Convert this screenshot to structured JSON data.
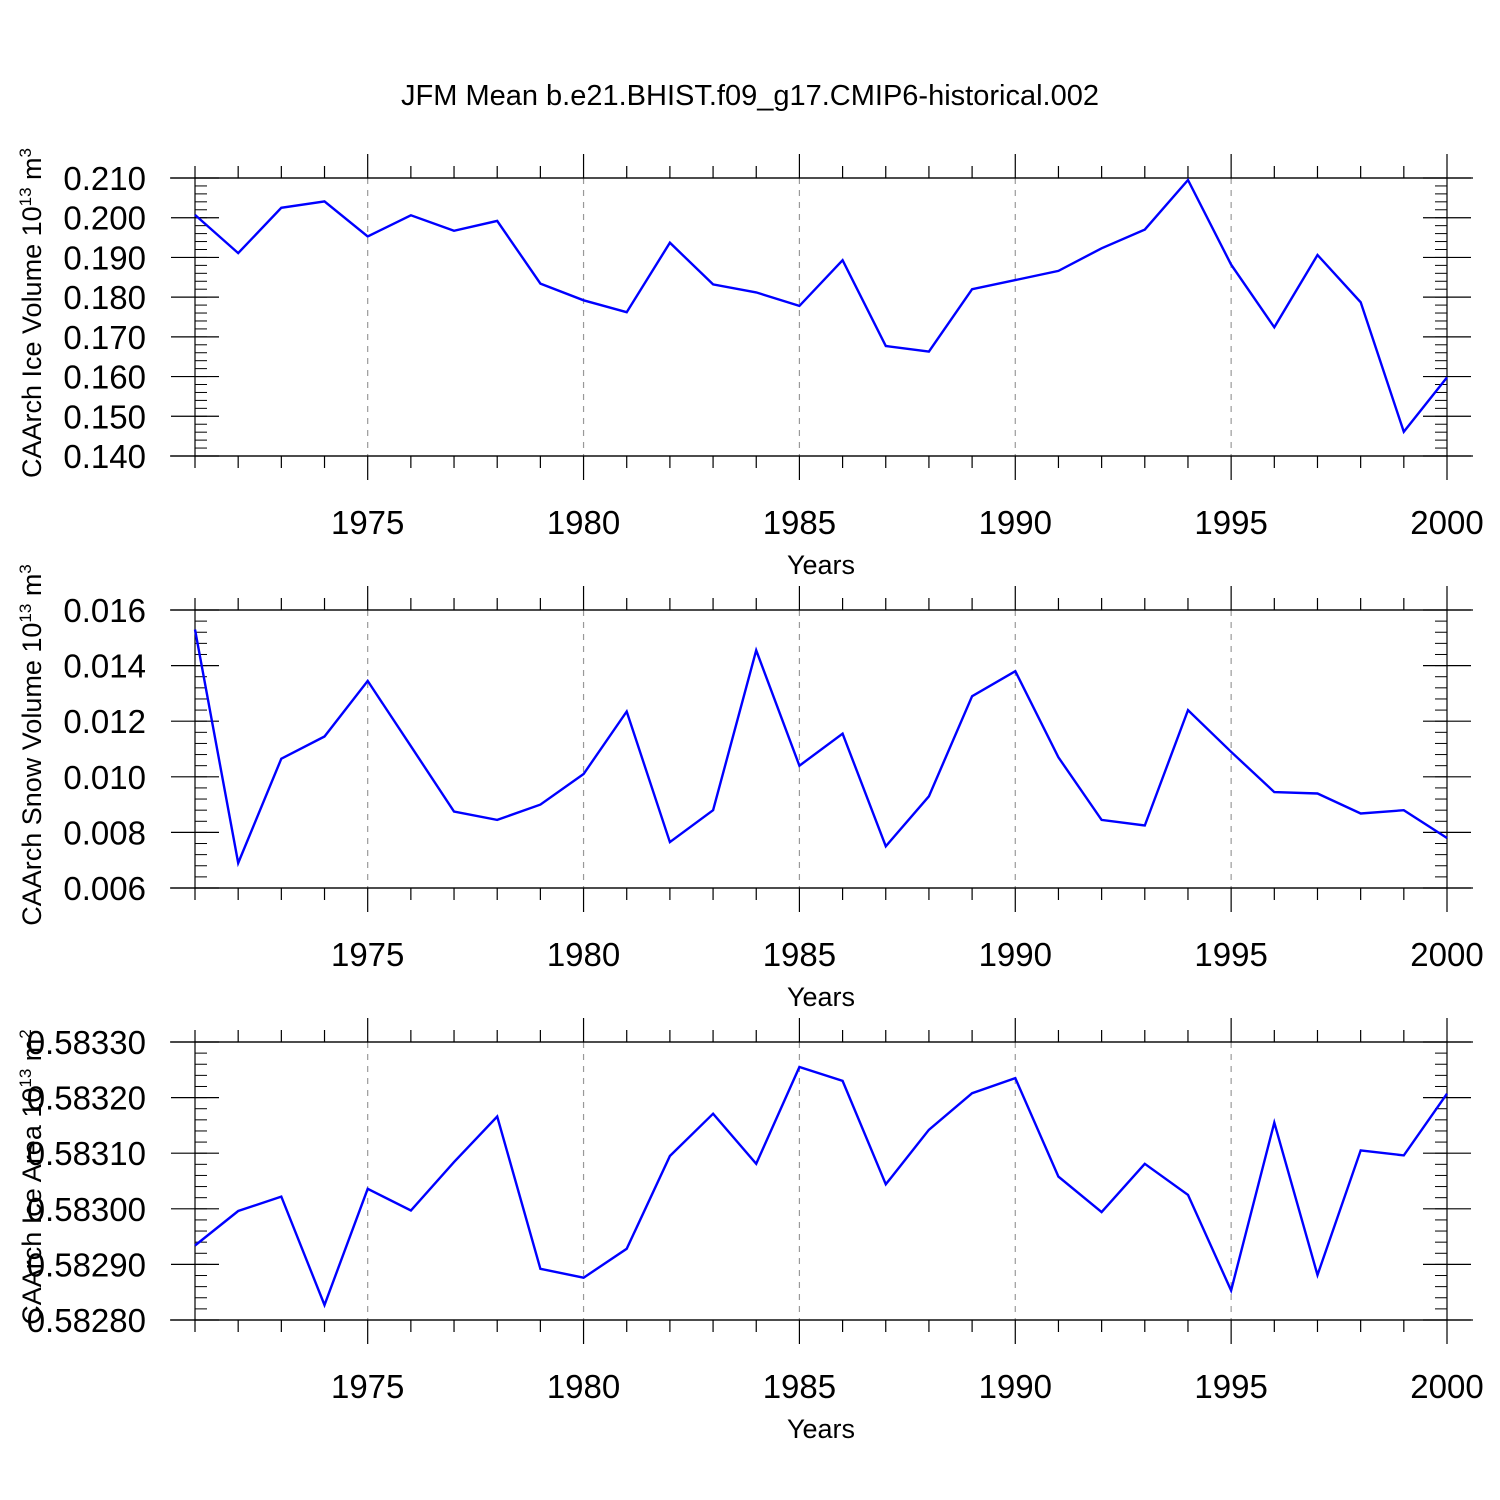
{
  "figure": {
    "title": "JFM Mean b.e21.BHIST.f09_g17.CMIP6-historical.002"
  },
  "chart_data": [
    {
      "type": "line",
      "ylabel": "CAArch Ice Volume 10",
      "ylabel_sup": "13",
      "ylabel_unit": "m",
      "ylabel_unit_sup": "3",
      "xlabel": "Years",
      "xlim": [
        1971,
        2000
      ],
      "ylim": [
        0.14,
        0.21
      ],
      "xticks": [
        1975,
        1980,
        1985,
        1990,
        1995,
        2000
      ],
      "yticks": [
        "0.140",
        "0.150",
        "0.160",
        "0.170",
        "0.180",
        "0.190",
        "0.200",
        "0.210"
      ],
      "grid": "vertical dashed at x ticks",
      "line_color": "#0000ff",
      "x": [
        1971,
        1972,
        1973,
        1974,
        1975,
        1976,
        1977,
        1978,
        1979,
        1980,
        1981,
        1982,
        1983,
        1984,
        1985,
        1986,
        1987,
        1988,
        1989,
        1990,
        1991,
        1992,
        1993,
        1994,
        1995,
        1996,
        1997,
        1998,
        1999,
        2000
      ],
      "values": [
        0.2007,
        0.1911,
        0.2025,
        0.2041,
        0.1953,
        0.2006,
        0.1967,
        0.1992,
        0.1834,
        0.1792,
        0.1762,
        0.1937,
        0.1832,
        0.1812,
        0.1778,
        0.1893,
        0.1677,
        0.1663,
        0.182,
        0.1843,
        0.1866,
        0.1923,
        0.197,
        0.2095,
        0.1882,
        0.1724,
        0.1906,
        0.1787,
        0.1461,
        0.1598
      ]
    },
    {
      "type": "line",
      "ylabel": "CAArch Snow Volume 10",
      "ylabel_sup": "13",
      "ylabel_unit": "m",
      "ylabel_unit_sup": "3",
      "xlabel": "Years",
      "xlim": [
        1971,
        2000
      ],
      "ylim": [
        0.006,
        0.016
      ],
      "xticks": [
        1975,
        1980,
        1985,
        1990,
        1995,
        2000
      ],
      "yticks": [
        "0.006",
        "0.008",
        "0.010",
        "0.012",
        "0.014",
        "0.016"
      ],
      "grid": "vertical dashed at x ticks",
      "line_color": "#0000ff",
      "x": [
        1971,
        1972,
        1973,
        1974,
        1975,
        1976,
        1977,
        1978,
        1979,
        1980,
        1981,
        1982,
        1983,
        1984,
        1985,
        1986,
        1987,
        1988,
        1989,
        1990,
        1991,
        1992,
        1993,
        1994,
        1995,
        1996,
        1997,
        1998,
        1999,
        2000
      ],
      "values": [
        0.0153,
        0.0069,
        0.01065,
        0.01145,
        0.01345,
        0.0111,
        0.00875,
        0.00845,
        0.009,
        0.0101,
        0.01235,
        0.00765,
        0.0088,
        0.01455,
        0.0104,
        0.01155,
        0.0075,
        0.0093,
        0.0129,
        0.0138,
        0.0107,
        0.00845,
        0.00825,
        0.0124,
        0.0109,
        0.00945,
        0.0094,
        0.00868,
        0.0088,
        0.0078
      ]
    },
    {
      "type": "line",
      "ylabel": "CAArch Ice Area 10",
      "ylabel_sup": "13",
      "ylabel_unit": "m",
      "ylabel_unit_sup": "2",
      "xlabel": "Years",
      "xlim": [
        1971,
        2000
      ],
      "ylim": [
        0.5828,
        0.5833
      ],
      "xticks": [
        1975,
        1980,
        1985,
        1990,
        1995,
        2000
      ],
      "yticks": [
        "0.58280",
        "0.58290",
        "0.58300",
        "0.58310",
        "0.58320",
        "0.58330"
      ],
      "grid": "vertical dashed at x ticks",
      "line_color": "#0000ff",
      "x": [
        1971,
        1972,
        1973,
        1974,
        1975,
        1976,
        1977,
        1978,
        1979,
        1980,
        1981,
        1982,
        1983,
        1984,
        1985,
        1986,
        1987,
        1988,
        1989,
        1990,
        1991,
        1992,
        1993,
        1994,
        1995,
        1996,
        1997,
        1998,
        1999,
        2000
      ],
      "values": [
        0.582934,
        0.582996,
        0.583022,
        0.582827,
        0.583036,
        0.582997,
        0.583084,
        0.583166,
        0.582892,
        0.582876,
        0.582928,
        0.583095,
        0.583171,
        0.583081,
        0.583255,
        0.58323,
        0.583044,
        0.583142,
        0.583208,
        0.583235,
        0.583058,
        0.582994,
        0.583081,
        0.583025,
        0.582853,
        0.583155,
        0.582881,
        0.583105,
        0.583096,
        0.583207
      ]
    }
  ]
}
